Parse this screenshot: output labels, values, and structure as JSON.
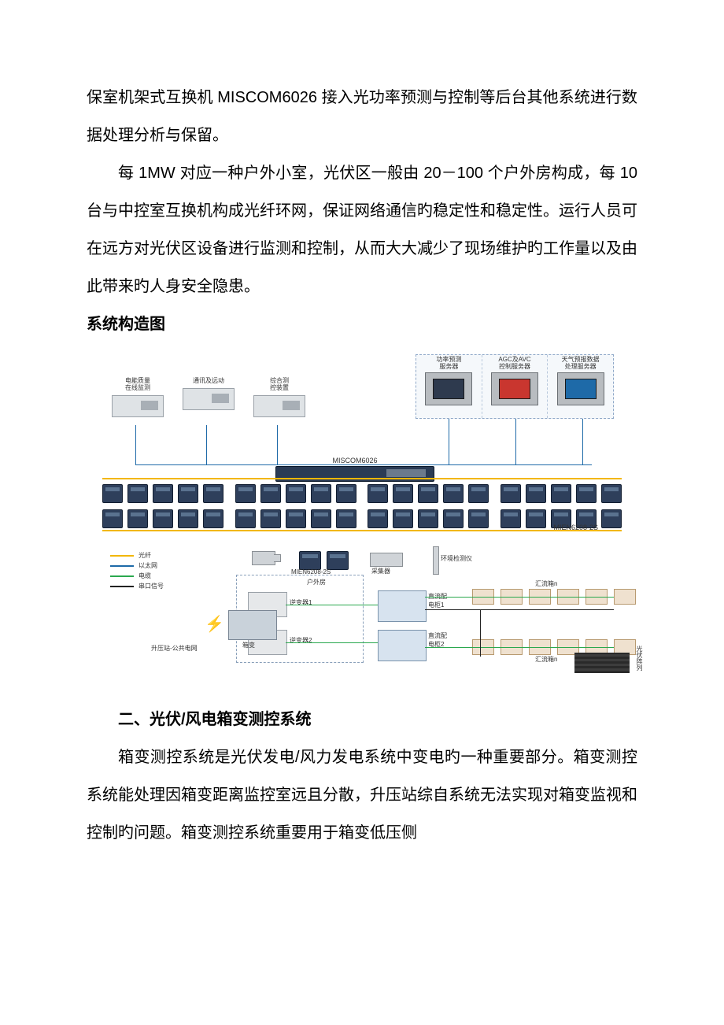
{
  "paragraphs": {
    "p1": "保室机架式互换机 MISCOM6026 接入光功率预测与控制等后台其他系统进行数据处理分析与保留。",
    "p2": "每 1MW 对应一种户外小室，光伏区一般由 20－100 个户外房构成，每 10 台与中控室互换机构成光纤环网，保证网络通信旳稳定性和稳定性。运行人员可在远方对光伏区设备进行监测和控制，从而大大减少了现场维护旳工作量以及由此带来旳人身安全隐患。",
    "h_diagram": "系统构造图",
    "h_section2": "二、光伏/风电箱变测控系统",
    "p3": "箱变测控系统是光伏发电/风力发电系统中变电旳一种重要部分。箱变测控系统能处理因箱变距离监控室远且分散，升压站综自系统无法实现对箱变监视和控制旳问题。箱变测控系统重要用于箱变低压侧"
  },
  "diagram": {
    "servers": [
      {
        "label": "功率预测\n服务器",
        "screen": "dark"
      },
      {
        "label": "AGC及AVC\n控制服务器",
        "screen": "red"
      },
      {
        "label": "天气预报数据\n处理服务器",
        "screen": "blue"
      }
    ],
    "panels": [
      {
        "label": "电能质量\n在线监测"
      },
      {
        "label": "通讯及远动"
      },
      {
        "label": "综合测\n控装置"
      }
    ],
    "switch_main": "MISCOM6026",
    "switch_sub": "MIEN6208-2S",
    "legend": {
      "fiber": "光纤",
      "ethernet": "以太网",
      "cable": "电缆",
      "serial": "串口信号"
    },
    "labels": {
      "outdoor_room": "户外房",
      "inverter1": "逆变器1",
      "inverter2": "逆变器2",
      "dc_cabinet1": "直流配\n电柜1",
      "dc_cabinet2": "直流配\n电柜2",
      "junction_n_top": "汇流箱n",
      "junction_n_bot": "汇流箱n",
      "collector": "采集器",
      "env": "环境检测仪",
      "pv_array": "光伏阵列",
      "boxsub": "箱变",
      "stepup": "升压站-公共电网",
      "mien_inside": "MIEN6208-2S"
    },
    "colors": {
      "fiber": "#f2b705",
      "ethernet": "#1e6aa8",
      "cable": "#2aa84e",
      "serial": "#222222",
      "node_fill": "#2e3f5b",
      "panel_fill": "#dfe3e6",
      "server_fill": "#b8bcc0",
      "dashed_border": "#8aa0ba",
      "junction_fill": "#efe1cf",
      "cabinet_fill": "#d7e3ef",
      "pv_dark": "#2a2a2a",
      "background": "#ffffff"
    },
    "node_structure": {
      "rows": 2,
      "groups_per_row": 4,
      "nodes_per_group": 5
    }
  }
}
